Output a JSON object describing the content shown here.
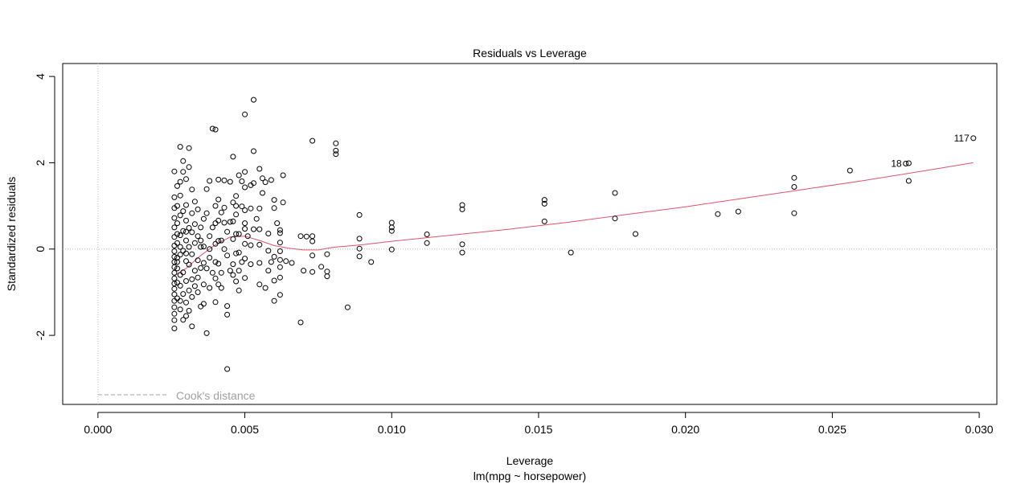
{
  "chart_data": {
    "type": "scatter",
    "title": "Residuals vs Leverage",
    "xlabel": "Leverage",
    "sublabel": "lm(mpg ~ horsepower)",
    "ylabel": "Standardized residuals",
    "xlim": [
      -0.0012,
      0.0306
    ],
    "ylim": [
      -3.6,
      4.3
    ],
    "x_ticks": [
      0.0,
      0.005,
      0.01,
      0.015,
      0.02,
      0.025,
      0.03
    ],
    "x_tick_labels": [
      "0.000",
      "0.005",
      "0.010",
      "0.015",
      "0.020",
      "0.025",
      "0.030"
    ],
    "y_ticks": [
      -2,
      0,
      2,
      4
    ],
    "y_tick_labels": [
      "-2",
      "0",
      "2",
      "4"
    ],
    "reference_lines": {
      "h": 0,
      "v": 0
    },
    "legend": {
      "label": "Cook's distance",
      "placement": "bottom-left"
    },
    "colors": {
      "smooth": "#DF536B",
      "points": "#000000",
      "reference": "#bebebe",
      "cooks": "#a0a0a0"
    },
    "labeled_points": [
      {
        "label": "117",
        "x": 0.0298,
        "y": 2.57
      },
      {
        "label": "18",
        "x": 0.0275,
        "y": 1.98
      }
    ],
    "smooth": {
      "x": [
        0.0026,
        0.003,
        0.0035,
        0.004,
        0.0045,
        0.005,
        0.0055,
        0.006,
        0.0065,
        0.007,
        0.0075,
        0.008,
        0.009,
        0.01,
        0.012,
        0.014,
        0.016,
        0.018,
        0.02,
        0.022,
        0.024,
        0.026,
        0.028,
        0.0298
      ],
      "y": [
        -0.62,
        -0.45,
        -0.15,
        0.1,
        0.28,
        0.3,
        0.2,
        0.08,
        0.02,
        -0.02,
        -0.02,
        0.04,
        0.1,
        0.18,
        0.32,
        0.46,
        0.62,
        0.8,
        0.98,
        1.18,
        1.38,
        1.58,
        1.8,
        2.0
      ]
    },
    "points": [
      [
        0.0298,
        2.57
      ],
      [
        0.0276,
        1.99
      ],
      [
        0.0275,
        1.98
      ],
      [
        0.0276,
        1.58
      ],
      [
        0.0256,
        1.82
      ],
      [
        0.0237,
        1.65
      ],
      [
        0.0237,
        1.44
      ],
      [
        0.0237,
        0.83
      ],
      [
        0.0218,
        0.87
      ],
      [
        0.0211,
        0.81
      ],
      [
        0.0183,
        0.35
      ],
      [
        0.0176,
        1.3
      ],
      [
        0.0176,
        0.71
      ],
      [
        0.0161,
        -0.08
      ],
      [
        0.0152,
        1.14
      ],
      [
        0.0152,
        1.05
      ],
      [
        0.0152,
        0.64
      ],
      [
        0.0124,
        1.02
      ],
      [
        0.0124,
        0.92
      ],
      [
        0.0124,
        0.11
      ],
      [
        0.0124,
        -0.08
      ],
      [
        0.0112,
        0.34
      ],
      [
        0.0112,
        0.14
      ],
      [
        0.01,
        0.61
      ],
      [
        0.01,
        0.5
      ],
      [
        0.01,
        0.42
      ],
      [
        0.01,
        -0.01
      ],
      [
        0.0093,
        -0.3
      ],
      [
        0.0089,
        0.79
      ],
      [
        0.0089,
        0.24
      ],
      [
        0.0089,
        0.01
      ],
      [
        0.0089,
        -0.17
      ],
      [
        0.0085,
        -1.35
      ],
      [
        0.0081,
        2.45
      ],
      [
        0.0081,
        2.28
      ],
      [
        0.0081,
        2.2
      ],
      [
        0.0078,
        -0.52
      ],
      [
        0.0078,
        -0.63
      ],
      [
        0.0078,
        -0.12
      ],
      [
        0.0076,
        -0.41
      ],
      [
        0.0073,
        2.51
      ],
      [
        0.0073,
        0.3
      ],
      [
        0.0073,
        0.18
      ],
      [
        0.0073,
        -0.15
      ],
      [
        0.0073,
        -0.53
      ],
      [
        0.0071,
        0.29
      ],
      [
        0.007,
        -0.5
      ],
      [
        0.0069,
        -1.7
      ],
      [
        0.0069,
        0.3
      ],
      [
        0.0066,
        -0.32
      ],
      [
        0.0064,
        -0.28
      ],
      [
        0.0063,
        1.71
      ],
      [
        0.0063,
        1.08
      ],
      [
        0.0062,
        0.44
      ],
      [
        0.0062,
        0.37
      ],
      [
        0.0062,
        0.15
      ],
      [
        0.0062,
        -0.05
      ],
      [
        0.0062,
        -0.25
      ],
      [
        0.0062,
        -0.42
      ],
      [
        0.0062,
        -0.66
      ],
      [
        0.0062,
        -1.06
      ],
      [
        0.006,
        1.14
      ],
      [
        0.006,
        0.95
      ],
      [
        0.006,
        -0.18
      ],
      [
        0.006,
        -0.73
      ],
      [
        0.006,
        -1.2
      ],
      [
        0.0059,
        1.6
      ],
      [
        0.0058,
        0.36
      ],
      [
        0.0058,
        -0.04
      ],
      [
        0.0058,
        -0.5
      ],
      [
        0.0057,
        1.55
      ],
      [
        0.0056,
        1.64
      ],
      [
        0.0055,
        1.86
      ],
      [
        0.0055,
        0.94
      ],
      [
        0.0055,
        0.46
      ],
      [
        0.0055,
        0.1
      ],
      [
        0.0055,
        -0.32
      ],
      [
        0.0055,
        -0.82
      ],
      [
        0.0053,
        3.46
      ],
      [
        0.0053,
        2.27
      ],
      [
        0.0053,
        1.53
      ],
      [
        0.0053,
        0.46
      ],
      [
        0.0052,
        1.48
      ],
      [
        0.0052,
        0.94
      ],
      [
        0.0052,
        0.09
      ],
      [
        0.0052,
        -0.35
      ],
      [
        0.005,
        3.12
      ],
      [
        0.005,
        1.79
      ],
      [
        0.005,
        1.43
      ],
      [
        0.005,
        0.9
      ],
      [
        0.005,
        0.6
      ],
      [
        0.005,
        0.47
      ],
      [
        0.005,
        0.12
      ],
      [
        0.005,
        -0.22
      ],
      [
        0.005,
        -0.67
      ],
      [
        0.0049,
        1.57
      ],
      [
        0.0049,
        0.99
      ],
      [
        0.0048,
        1.71
      ],
      [
        0.0048,
        0.35
      ],
      [
        0.0048,
        -0.08
      ],
      [
        0.0048,
        -0.5
      ],
      [
        0.0048,
        -0.96
      ],
      [
        0.0047,
        1.23
      ],
      [
        0.0047,
        0.8
      ],
      [
        0.0047,
        0.35
      ],
      [
        0.0047,
        -0.1
      ],
      [
        0.0047,
        -0.75
      ],
      [
        0.0046,
        2.14
      ],
      [
        0.0046,
        1.08
      ],
      [
        0.0046,
        0.64
      ],
      [
        0.0046,
        0.23
      ],
      [
        0.0046,
        -0.35
      ],
      [
        0.0046,
        -0.6
      ],
      [
        0.0045,
        1.56
      ],
      [
        0.0045,
        0.63
      ],
      [
        0.0044,
        -2.78
      ],
      [
        0.0044,
        -1.52
      ],
      [
        0.0044,
        -1.32
      ],
      [
        0.0044,
        0.4
      ],
      [
        0.0044,
        -0.15
      ],
      [
        0.0043,
        0.96
      ],
      [
        0.0043,
        0.61
      ],
      [
        0.0043,
        1.59
      ],
      [
        0.0042,
        0.85
      ],
      [
        0.0042,
        0.2
      ],
      [
        0.0042,
        -0.55
      ],
      [
        0.0041,
        1.61
      ],
      [
        0.0041,
        1.15
      ],
      [
        0.0041,
        0.66
      ],
      [
        0.0041,
        0.19
      ],
      [
        0.0041,
        -0.34
      ],
      [
        0.0041,
        -0.82
      ],
      [
        0.004,
        2.77
      ],
      [
        0.004,
        1.0
      ],
      [
        0.004,
        0.6
      ],
      [
        0.004,
        0.12
      ],
      [
        0.004,
        -0.3
      ],
      [
        0.004,
        -0.68
      ],
      [
        0.004,
        -1.23
      ],
      [
        0.0039,
        2.79
      ],
      [
        0.0039,
        0.5
      ],
      [
        0.0038,
        1.58
      ],
      [
        0.0038,
        0.3
      ],
      [
        0.0038,
        -0.2
      ],
      [
        0.0038,
        -0.9
      ],
      [
        0.0037,
        1.39
      ],
      [
        0.0037,
        -1.95
      ],
      [
        0.0037,
        0.83
      ],
      [
        0.0037,
        -0.45
      ],
      [
        0.0036,
        0.06
      ],
      [
        0.0036,
        -0.32
      ],
      [
        0.0036,
        -1.27
      ],
      [
        0.0036,
        -0.82
      ],
      [
        0.0035,
        0.5
      ],
      [
        0.0035,
        0.05
      ],
      [
        0.0035,
        -0.44
      ],
      [
        0.0035,
        -1.33
      ],
      [
        0.0034,
        0.92
      ],
      [
        0.0034,
        0.3
      ],
      [
        0.0034,
        -0.26
      ],
      [
        0.0034,
        -0.66
      ],
      [
        0.0033,
        1.1
      ],
      [
        0.0033,
        0.58
      ],
      [
        0.0033,
        0.14
      ],
      [
        0.0033,
        -0.5
      ],
      [
        0.0033,
        -0.86
      ],
      [
        0.0032,
        1.38
      ],
      [
        0.0032,
        0.83
      ],
      [
        0.0032,
        0.39
      ],
      [
        0.0032,
        -0.12
      ],
      [
        0.0032,
        -0.7
      ],
      [
        0.0032,
        -1.11
      ],
      [
        0.0032,
        -1.79
      ],
      [
        0.0031,
        2.34
      ],
      [
        0.0031,
        1.9
      ],
      [
        0.0031,
        0.49
      ],
      [
        0.0031,
        0.05
      ],
      [
        0.0031,
        -0.36
      ],
      [
        0.0031,
        -0.96
      ],
      [
        0.0031,
        -1.43
      ],
      [
        0.003,
        1.62
      ],
      [
        0.003,
        1.02
      ],
      [
        0.003,
        0.66
      ],
      [
        0.003,
        0.2
      ],
      [
        0.003,
        -0.28
      ],
      [
        0.003,
        -0.74
      ],
      [
        0.003,
        -1.24
      ],
      [
        0.003,
        -1.55
      ],
      [
        0.0029,
        2.04
      ],
      [
        0.0029,
        1.79
      ],
      [
        0.0029,
        0.88
      ],
      [
        0.0029,
        0.42
      ],
      [
        0.0029,
        -0.04
      ],
      [
        0.0029,
        -0.54
      ],
      [
        0.0029,
        -1.04
      ],
      [
        0.0029,
        -1.64
      ],
      [
        0.0028,
        2.37
      ],
      [
        0.0028,
        1.56
      ],
      [
        0.0028,
        1.24
      ],
      [
        0.0028,
        0.78
      ],
      [
        0.0028,
        0.32
      ],
      [
        0.0028,
        -0.13
      ],
      [
        0.0028,
        -0.6
      ],
      [
        0.0028,
        -1.2
      ],
      [
        0.0028,
        -1.4
      ],
      [
        0.0027,
        1.46
      ],
      [
        0.0027,
        1.0
      ],
      [
        0.0027,
        0.6
      ],
      [
        0.0027,
        0.14
      ],
      [
        0.0027,
        -0.3
      ],
      [
        0.0027,
        -0.78
      ],
      [
        0.0027,
        -1.14
      ],
      [
        0.0026,
        1.8
      ],
      [
        0.0026,
        1.2
      ],
      [
        0.0026,
        0.95
      ],
      [
        0.0026,
        0.72
      ],
      [
        0.0026,
        0.5
      ],
      [
        0.0026,
        0.28
      ],
      [
        0.0026,
        0.08
      ],
      [
        0.0026,
        -0.05
      ],
      [
        0.0026,
        -0.18
      ],
      [
        0.0026,
        -0.3
      ],
      [
        0.0026,
        -0.42
      ],
      [
        0.0026,
        -0.55
      ],
      [
        0.0026,
        -0.68
      ],
      [
        0.0026,
        -0.8
      ],
      [
        0.0026,
        -0.92
      ],
      [
        0.0026,
        -1.05
      ],
      [
        0.0026,
        -1.2
      ],
      [
        0.0026,
        -1.35
      ],
      [
        0.0026,
        -1.5
      ],
      [
        0.0026,
        -1.65
      ],
      [
        0.0026,
        -1.84
      ],
      [
        0.0027,
        -0.45
      ],
      [
        0.0027,
        -0.2
      ],
      [
        0.0027,
        0.35
      ],
      [
        0.0028,
        0.05
      ],
      [
        0.0028,
        -0.85
      ],
      [
        0.003,
        -0.1
      ],
      [
        0.003,
        0.4
      ],
      [
        0.0034,
        -1.0
      ],
      [
        0.0035,
        0.2
      ],
      [
        0.0036,
        0.7
      ],
      [
        0.0038,
        0.0
      ],
      [
        0.0039,
        -0.55
      ],
      [
        0.0042,
        -0.9
      ],
      [
        0.0043,
        0.0
      ],
      [
        0.0045,
        -0.5
      ],
      [
        0.0047,
        1.0
      ],
      [
        0.0049,
        -0.3
      ],
      [
        0.0051,
        0.3
      ],
      [
        0.0054,
        0.7
      ],
      [
        0.0056,
        1.3
      ],
      [
        0.0057,
        -0.9
      ],
      [
        0.0059,
        -0.3
      ],
      [
        0.0061,
        0.6
      ]
    ]
  }
}
